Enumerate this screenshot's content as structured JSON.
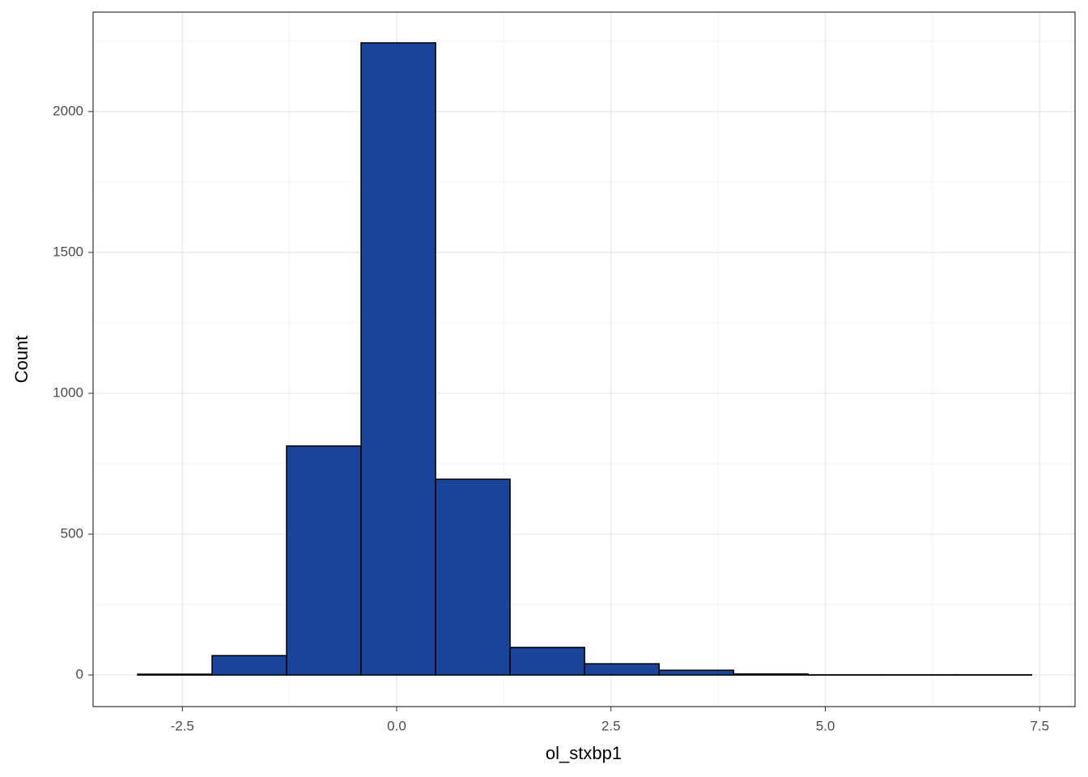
{
  "chart_data": {
    "type": "histogram",
    "x_label": "ol_stxbp1",
    "y_label": "Count",
    "bins": [
      -3.022,
      -2.153,
      -1.284,
      -0.415,
      0.454,
      1.323,
      2.192,
      3.061,
      3.93,
      4.799,
      5.668,
      6.537,
      7.406
    ],
    "counts": [
      3,
      69,
      813,
      2244,
      695,
      98,
      40,
      17,
      4,
      1,
      1,
      1
    ],
    "color": "#1a439a",
    "edge_color": "#000000",
    "xlim": [
      -3.541,
      7.913
    ],
    "ylim": [
      -112,
      2353
    ],
    "xticks": [
      {
        "value": -2.5,
        "label": "-2.5"
      },
      {
        "value": 0,
        "label": "0.0"
      },
      {
        "value": 2.5,
        "label": "2.5"
      },
      {
        "value": 5,
        "label": "5.0"
      },
      {
        "value": 7.5,
        "label": "7.5"
      }
    ],
    "yticks": [
      0,
      500,
      1000,
      1500,
      2000
    ],
    "x_minor_ticks": [
      -1.25,
      1.25,
      3.75,
      6.25
    ],
    "y_minor_ticks": [
      250,
      750,
      1250,
      1750,
      2250
    ],
    "grid": true
  }
}
